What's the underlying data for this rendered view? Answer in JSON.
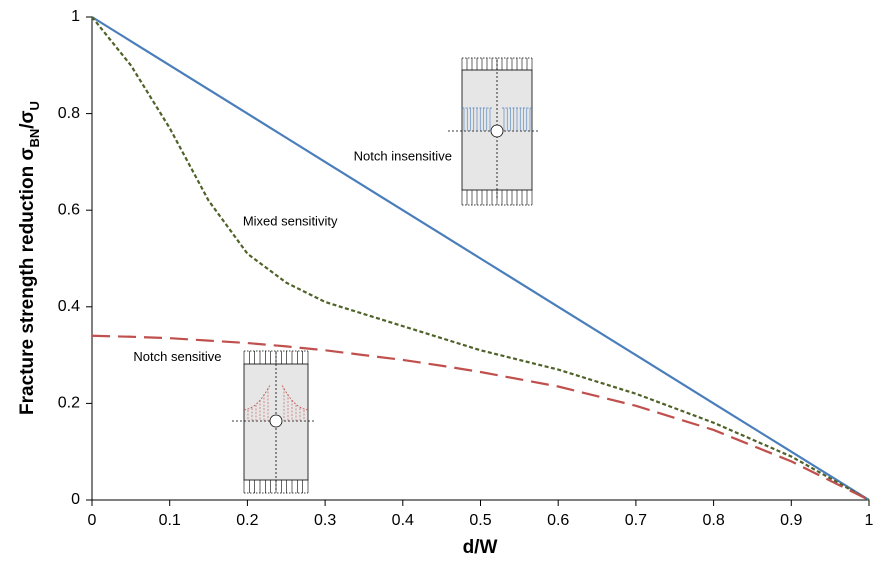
{
  "chart_data": {
    "type": "line",
    "xlabel": "d/W",
    "ylabel_parts": [
      "Fracture strength reduction σ",
      "BN",
      "/σ",
      "U"
    ],
    "x": [
      0,
      0.05,
      0.1,
      0.15,
      0.2,
      0.25,
      0.3,
      0.35,
      0.4,
      0.45,
      0.5,
      0.6,
      0.7,
      0.8,
      0.9,
      1
    ],
    "series": [
      {
        "name": "Notch insensitive",
        "color": "#4a7ebb",
        "dash": "solid",
        "values": [
          1,
          0.95,
          0.9,
          0.85,
          0.8,
          0.75,
          0.7,
          0.65,
          0.6,
          0.55,
          0.5,
          0.4,
          0.3,
          0.2,
          0.1,
          0
        ]
      },
      {
        "name": "Mixed sensitivity",
        "color": "#4f6228",
        "dash": "short",
        "values": [
          1,
          0.9,
          0.77,
          0.62,
          0.51,
          0.45,
          0.41,
          0.385,
          0.36,
          0.335,
          0.31,
          0.27,
          0.22,
          0.16,
          0.09,
          0
        ]
      },
      {
        "name": "Notch sensitive",
        "color": "#c0504d",
        "dash": "long",
        "values": [
          0.34,
          0.338,
          0.335,
          0.33,
          0.325,
          0.318,
          0.31,
          0.3,
          0.29,
          0.278,
          0.265,
          0.235,
          0.195,
          0.145,
          0.08,
          0
        ]
      }
    ],
    "annotations": [
      {
        "text": "Notch insensitive",
        "x": 0.4,
        "y": 0.71,
        "series": 0
      },
      {
        "text": "Mixed sensitivity",
        "x": 0.255,
        "y": 0.575,
        "series": 1
      },
      {
        "text": "Notch sensitive",
        "x": 0.11,
        "y": 0.295,
        "series": 2
      }
    ],
    "xlim": [
      0,
      1
    ],
    "ylim": [
      0,
      1
    ],
    "xticks": [
      0,
      0.1,
      0.2,
      0.3,
      0.4,
      0.5,
      0.6,
      0.7,
      0.8,
      0.9,
      1
    ],
    "yticks": [
      0,
      0.2,
      0.4,
      0.6,
      0.8,
      1
    ]
  }
}
